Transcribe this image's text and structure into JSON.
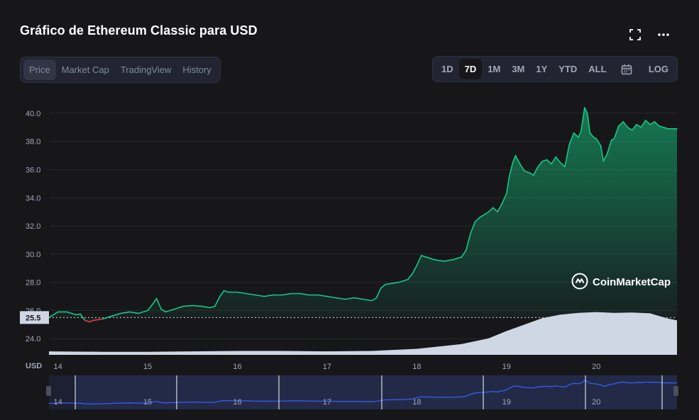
{
  "header": {
    "title": "Gráfico de Ethereum Classic para USD",
    "fullscreen_icon": "fullscreen-icon",
    "more_icon": "more-horizontal-icon"
  },
  "tabs": [
    {
      "label": "Price",
      "active": true
    },
    {
      "label": "Market Cap",
      "active": false
    },
    {
      "label": "TradingView",
      "active": false
    },
    {
      "label": "History",
      "active": false
    }
  ],
  "ranges": [
    {
      "label": "1D",
      "active": false
    },
    {
      "label": "7D",
      "active": true
    },
    {
      "label": "1M",
      "active": false
    },
    {
      "label": "3M",
      "active": false
    },
    {
      "label": "1Y",
      "active": false
    },
    {
      "label": "YTD",
      "active": false
    },
    {
      "label": "ALL",
      "active": false
    }
  ],
  "calendar_icon": "calendar-icon",
  "log_label": "LOG",
  "watermark": "CoinMarketCap",
  "colors": {
    "up": "#16c784",
    "down": "#ea3943",
    "volume": "#cfd6e4",
    "navigator_line": "#3861fb"
  },
  "chart_data": {
    "type": "area",
    "currency_label": "USD",
    "baseline_label": "25.5",
    "baseline_value": 25.5,
    "ylim": [
      22.5,
      40.6
    ],
    "yticks": [
      "24.0",
      "26.0",
      "28.0",
      "30.0",
      "32.0",
      "34.0",
      "36.0",
      "38.0",
      "40.0"
    ],
    "xticks": [
      "14",
      "15",
      "16",
      "17",
      "18",
      "19",
      "20"
    ],
    "x_range": [
      13.9,
      20.9
    ],
    "series": [
      {
        "points": [
          [
            13.9,
            25.5
          ],
          [
            14.0,
            25.9
          ],
          [
            14.1,
            25.9
          ],
          [
            14.2,
            25.7
          ],
          [
            14.25,
            25.75
          ],
          [
            14.3,
            25.3
          ],
          [
            14.35,
            25.2
          ],
          [
            14.4,
            25.3
          ],
          [
            14.5,
            25.4
          ],
          [
            14.6,
            25.6
          ],
          [
            14.7,
            25.8
          ],
          [
            14.8,
            25.9
          ],
          [
            14.9,
            25.8
          ],
          [
            15.0,
            26.0
          ],
          [
            15.05,
            26.4
          ],
          [
            15.1,
            26.85
          ],
          [
            15.15,
            26.1
          ],
          [
            15.2,
            25.9
          ],
          [
            15.3,
            26.1
          ],
          [
            15.4,
            26.3
          ],
          [
            15.5,
            26.35
          ],
          [
            15.6,
            26.3
          ],
          [
            15.7,
            26.2
          ],
          [
            15.75,
            26.3
          ],
          [
            15.8,
            26.95
          ],
          [
            15.85,
            27.4
          ],
          [
            15.9,
            27.3
          ],
          [
            16.0,
            27.3
          ],
          [
            16.1,
            27.2
          ],
          [
            16.2,
            27.1
          ],
          [
            16.3,
            27.0
          ],
          [
            16.4,
            27.1
          ],
          [
            16.5,
            27.1
          ],
          [
            16.6,
            27.2
          ],
          [
            16.7,
            27.2
          ],
          [
            16.8,
            27.1
          ],
          [
            16.9,
            27.1
          ],
          [
            17.0,
            27.0
          ],
          [
            17.1,
            26.9
          ],
          [
            17.2,
            26.8
          ],
          [
            17.3,
            26.9
          ],
          [
            17.4,
            26.8
          ],
          [
            17.5,
            26.7
          ],
          [
            17.55,
            26.9
          ],
          [
            17.6,
            27.6
          ],
          [
            17.65,
            27.85
          ],
          [
            17.7,
            27.9
          ],
          [
            17.8,
            28.0
          ],
          [
            17.9,
            28.2
          ],
          [
            17.95,
            28.6
          ],
          [
            18.0,
            29.2
          ],
          [
            18.05,
            29.9
          ],
          [
            18.1,
            29.8
          ],
          [
            18.2,
            29.6
          ],
          [
            18.3,
            29.5
          ],
          [
            18.4,
            29.6
          ],
          [
            18.5,
            29.8
          ],
          [
            18.55,
            30.3
          ],
          [
            18.6,
            31.5
          ],
          [
            18.65,
            32.3
          ],
          [
            18.7,
            32.6
          ],
          [
            18.8,
            33.0
          ],
          [
            18.85,
            33.3
          ],
          [
            18.9,
            33.0
          ],
          [
            18.95,
            33.6
          ],
          [
            19.0,
            34.3
          ],
          [
            19.03,
            35.5
          ],
          [
            19.07,
            36.5
          ],
          [
            19.1,
            37.0
          ],
          [
            19.15,
            36.4
          ],
          [
            19.2,
            35.9
          ],
          [
            19.25,
            35.8
          ],
          [
            19.3,
            35.6
          ],
          [
            19.35,
            36.2
          ],
          [
            19.4,
            36.6
          ],
          [
            19.45,
            36.7
          ],
          [
            19.5,
            36.4
          ],
          [
            19.55,
            36.9
          ],
          [
            19.6,
            36.5
          ],
          [
            19.65,
            36.2
          ],
          [
            19.7,
            37.8
          ],
          [
            19.75,
            38.6
          ],
          [
            19.8,
            38.3
          ],
          [
            19.83,
            38.7
          ],
          [
            19.87,
            40.4
          ],
          [
            19.9,
            40.0
          ],
          [
            19.93,
            38.6
          ],
          [
            19.97,
            38.3
          ],
          [
            20.0,
            38.2
          ],
          [
            20.05,
            37.7
          ],
          [
            20.08,
            36.6
          ],
          [
            20.12,
            37.1
          ],
          [
            20.17,
            38.1
          ],
          [
            20.2,
            38.2
          ],
          [
            20.25,
            39.1
          ],
          [
            20.3,
            39.4
          ],
          [
            20.35,
            39.0
          ],
          [
            20.4,
            38.8
          ],
          [
            20.45,
            39.2
          ],
          [
            20.5,
            39.0
          ],
          [
            20.55,
            39.5
          ],
          [
            20.6,
            39.2
          ],
          [
            20.65,
            39.4
          ],
          [
            20.7,
            39.1
          ],
          [
            20.75,
            39.0
          ],
          [
            20.8,
            38.9
          ],
          [
            20.9,
            38.9
          ]
        ]
      }
    ],
    "volume": [
      [
        13.9,
        0.08
      ],
      [
        14.5,
        0.07
      ],
      [
        15.0,
        0.07
      ],
      [
        15.5,
        0.08
      ],
      [
        16.0,
        0.09
      ],
      [
        16.5,
        0.09
      ],
      [
        17.0,
        0.08
      ],
      [
        17.5,
        0.09
      ],
      [
        18.0,
        0.14
      ],
      [
        18.5,
        0.25
      ],
      [
        18.8,
        0.38
      ],
      [
        19.0,
        0.55
      ],
      [
        19.2,
        0.7
      ],
      [
        19.4,
        0.85
      ],
      [
        19.6,
        0.93
      ],
      [
        19.8,
        0.97
      ],
      [
        20.0,
        0.99
      ],
      [
        20.2,
        0.97
      ],
      [
        20.4,
        0.98
      ],
      [
        20.6,
        0.96
      ],
      [
        20.7,
        0.9
      ],
      [
        20.8,
        0.84
      ],
      [
        20.9,
        0.8
      ]
    ]
  }
}
